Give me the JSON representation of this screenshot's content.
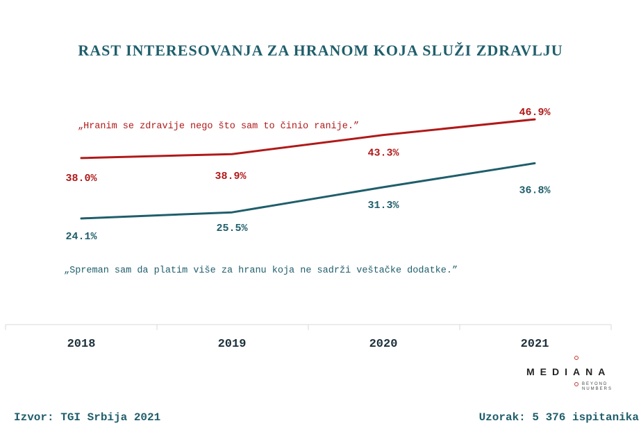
{
  "chart_data": {
    "type": "line",
    "title": "RAST INTERESOVANJA ZA HRANOM KOJA SLUŽI ZDRAVLJU",
    "categories": [
      "2018",
      "2019",
      "2020",
      "2021"
    ],
    "ylim": [
      0,
      60
    ],
    "grid": false,
    "series": [
      {
        "name": "„Hranim se zdravije nego što sam to činio ranije.”",
        "values": [
          38.0,
          38.9,
          43.3,
          46.9
        ],
        "labels": [
          "38.0%",
          "38.9%",
          "43.3%",
          "46.9%"
        ],
        "color": "#b01919"
      },
      {
        "name": "„Spreman sam da platim više za hranu koja ne sadrži veštačke dodatke.”",
        "values": [
          24.1,
          25.5,
          31.3,
          36.8
        ],
        "labels": [
          "24.1%",
          "25.5%",
          "31.3%",
          "36.8%"
        ],
        "color": "#1f5e6b"
      }
    ]
  },
  "footer": {
    "source": "Izvor: TGI Srbija 2021",
    "sample": "Uzorak: 5 376 ispitanika"
  },
  "logo": {
    "name": "MEDIANA",
    "tagline_1": "BEYOND",
    "tagline_2": "NUMBERS"
  }
}
